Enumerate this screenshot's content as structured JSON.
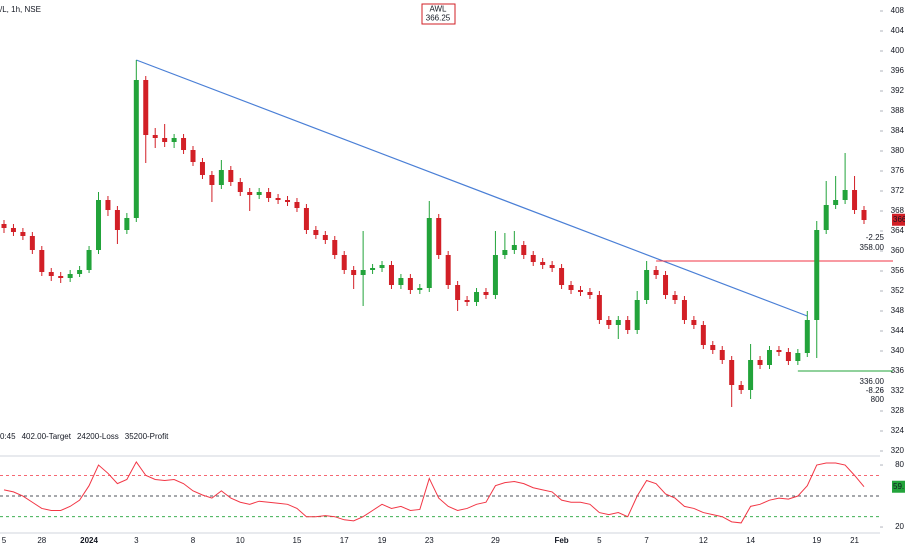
{
  "chart_data": {
    "type": "candlestick",
    "title": "/L, 1h, NSE",
    "symbol": "AWL",
    "last_price": 366.25,
    "last_price_tag": "366",
    "status": [
      {
        "text": "0:45",
        "color": "#787b86"
      },
      {
        "text": "402.00-Target",
        "color": "#2962ff"
      },
      {
        "text": "24200-Loss",
        "color": "#f23645"
      },
      {
        "text": "35200-Profit",
        "color": "#089981"
      }
    ],
    "up_color": "#22a33a",
    "down_color": "#d21f26",
    "ylim": [
      319.2,
      410.2
    ],
    "yticks": [
      320,
      324,
      328,
      332,
      336,
      340,
      344,
      348,
      352,
      356,
      360,
      364,
      368,
      372,
      376,
      380,
      384,
      388,
      392,
      396,
      400,
      404,
      408
    ],
    "categories": [
      "5",
      null,
      null,
      null,
      "28",
      null,
      null,
      null,
      null,
      "2024",
      null,
      null,
      null,
      null,
      "3",
      null,
      null,
      null,
      null,
      null,
      "8",
      null,
      null,
      null,
      null,
      "10",
      null,
      null,
      null,
      null,
      null,
      "15",
      null,
      null,
      null,
      null,
      "17",
      null,
      null,
      null,
      "19",
      null,
      null,
      null,
      null,
      "23",
      null,
      null,
      null,
      null,
      null,
      null,
      "29",
      null,
      null,
      null,
      null,
      null,
      null,
      "Feb",
      null,
      null,
      null,
      "5",
      null,
      null,
      null,
      null,
      "7",
      null,
      null,
      null,
      null,
      null,
      "12",
      null,
      null,
      null,
      null,
      "14",
      null,
      null,
      null,
      null,
      null,
      null,
      "19",
      null,
      null,
      null,
      "21",
      null
    ],
    "ohlc": [
      [
        365.4,
        366.2,
        363.6,
        364.6
      ],
      [
        364.6,
        365.4,
        363,
        363.8
      ],
      [
        363.8,
        364.6,
        362.2,
        363
      ],
      [
        363,
        363.8,
        359.4,
        360.2
      ],
      [
        360.2,
        361,
        355,
        355.8
      ],
      [
        355.8,
        356.6,
        354,
        355
      ],
      [
        355,
        355.8,
        353.6,
        354.6
      ],
      [
        354.6,
        356.2,
        353.8,
        355.4
      ],
      [
        355.4,
        357,
        354.8,
        356.2
      ],
      [
        356.2,
        361,
        355.6,
        360.2
      ],
      [
        360.2,
        371.8,
        359.4,
        370.2
      ],
      [
        370.2,
        371,
        367,
        368.2
      ],
      [
        368.2,
        369,
        361.4,
        364.2
      ],
      [
        364.2,
        367.6,
        363.4,
        366.6
      ],
      [
        366.6,
        398.2,
        365.8,
        394.2
      ],
      [
        394.2,
        395,
        377.6,
        383.2
      ],
      [
        383.2,
        384.6,
        380.6,
        382.6
      ],
      [
        382.6,
        385.4,
        380.8,
        381.8
      ],
      [
        381.8,
        383.4,
        380.6,
        382.6
      ],
      [
        382.6,
        383.4,
        379.4,
        380.2
      ],
      [
        380.2,
        381,
        377,
        377.8
      ],
      [
        377.8,
        378.6,
        374.4,
        375.2
      ],
      [
        375.2,
        376,
        369.8,
        373.2
      ],
      [
        373.2,
        378.2,
        372.4,
        376.2
      ],
      [
        376.2,
        377,
        373,
        373.8
      ],
      [
        373.8,
        374.6,
        371,
        371.8
      ],
      [
        371.8,
        372.6,
        368,
        371.2
      ],
      [
        371.2,
        372.6,
        370.4,
        371.8
      ],
      [
        371.8,
        372.6,
        369.8,
        370.6
      ],
      [
        370.6,
        371.4,
        369.4,
        370.2
      ],
      [
        370.2,
        371,
        369,
        369.8
      ],
      [
        369.8,
        370.6,
        367.8,
        368.6
      ],
      [
        368.6,
        369.4,
        363.4,
        364.2
      ],
      [
        364.2,
        365,
        362.4,
        363.2
      ],
      [
        363.2,
        364,
        361.4,
        362.2
      ],
      [
        362.2,
        363,
        358.4,
        359.2
      ],
      [
        359.2,
        360,
        355.4,
        356.2
      ],
      [
        356.2,
        357,
        352.4,
        355.2
      ],
      [
        355.2,
        364,
        349,
        356.2
      ],
      [
        356.2,
        357.4,
        355.4,
        356.6
      ],
      [
        356.6,
        358,
        355.8,
        357.2
      ],
      [
        357.2,
        358,
        352.4,
        353.2
      ],
      [
        353.2,
        355.4,
        352.4,
        354.6
      ],
      [
        354.6,
        355.4,
        351.4,
        352.2
      ],
      [
        352.2,
        353.4,
        351.4,
        352.6
      ],
      [
        352.6,
        370,
        351.8,
        366.6
      ],
      [
        366.6,
        367.4,
        358.4,
        359.2
      ],
      [
        359.2,
        360,
        352.4,
        353.2
      ],
      [
        353.2,
        354,
        348,
        350.2
      ],
      [
        350.2,
        351,
        349,
        349.8
      ],
      [
        349.8,
        352.6,
        349,
        351.8
      ],
      [
        351.8,
        352.6,
        350.4,
        351.2
      ],
      [
        351.2,
        364,
        350.4,
        359.2
      ],
      [
        359.2,
        363.6,
        358.4,
        360.2
      ],
      [
        360.2,
        364,
        359.4,
        361.2
      ],
      [
        361.2,
        362,
        358.4,
        359.2
      ],
      [
        359.2,
        360,
        357,
        357.8
      ],
      [
        357.8,
        358.6,
        356.4,
        357.2
      ],
      [
        357.2,
        358,
        355.8,
        356.6
      ],
      [
        356.6,
        357.4,
        352.4,
        353.2
      ],
      [
        353.2,
        354,
        351.4,
        352.2
      ],
      [
        352.2,
        353,
        351,
        351.8
      ],
      [
        351.8,
        352.6,
        350.4,
        351.2
      ],
      [
        351.2,
        352,
        345.4,
        346.2
      ],
      [
        346.2,
        347,
        344.4,
        345.2
      ],
      [
        345.2,
        347,
        342.4,
        346.2
      ],
      [
        346.2,
        347,
        343.4,
        344.2
      ],
      [
        344.2,
        352,
        343.4,
        350.2
      ],
      [
        350.2,
        358,
        349.4,
        356.2
      ],
      [
        356.2,
        357,
        354.4,
        355.2
      ],
      [
        355.2,
        356,
        350.4,
        351.2
      ],
      [
        351.2,
        352,
        349.4,
        350.2
      ],
      [
        350.2,
        351,
        345.4,
        346.2
      ],
      [
        346.2,
        347,
        344.4,
        345.2
      ],
      [
        345.2,
        346,
        340.4,
        341.2
      ],
      [
        341.2,
        342,
        339.4,
        340.2
      ],
      [
        340.2,
        341,
        337.4,
        338.2
      ],
      [
        338.2,
        339,
        328.8,
        333.2
      ],
      [
        333.2,
        334,
        331.4,
        332.2
      ],
      [
        332.2,
        341.4,
        330.4,
        338.2
      ],
      [
        338.2,
        339,
        336.4,
        337.2
      ],
      [
        337.2,
        341,
        336.4,
        340.2
      ],
      [
        340.2,
        341,
        339,
        339.8
      ],
      [
        339.8,
        340.6,
        337.2,
        338
      ],
      [
        338,
        340.4,
        337.2,
        339.6
      ],
      [
        339.6,
        348,
        338.8,
        346.2
      ],
      [
        346.2,
        366,
        338.6,
        364.2
      ],
      [
        364.2,
        374,
        363.4,
        369.2
      ],
      [
        369.2,
        375,
        368.4,
        370.2
      ],
      [
        370.2,
        379.6,
        369.4,
        372.2
      ],
      [
        372.2,
        375,
        367.4,
        368.2
      ],
      [
        368.2,
        369,
        365.4,
        366.2
      ]
    ],
    "trendline": {
      "color": "#4a7fd6",
      "values": [
        398.2,
        347
      ]
    },
    "levels": [
      {
        "value": 358,
        "label": "358.00",
        "change": -2.25,
        "color": "#f23645"
      },
      {
        "value": 336,
        "label": "336.00",
        "change": -8.26,
        "qty": 800,
        "color": "#22a33a"
      }
    ],
    "oscillator": {
      "color": "#f23645",
      "ylim": [
        15.2,
        86.8
      ],
      "yticks": [
        20,
        80
      ],
      "last_label": "59.",
      "levels": [
        {
          "value": 70,
          "color": "#f23645"
        },
        {
          "value": 50,
          "color": "#131722"
        },
        {
          "value": 30,
          "color": "#22a33a"
        }
      ],
      "values": [
        56,
        54,
        50,
        44,
        38,
        36,
        36,
        40,
        46,
        60,
        80,
        72,
        62,
        66,
        83,
        70,
        66,
        65,
        66,
        62,
        55,
        51,
        48,
        55,
        48,
        44,
        42,
        45,
        44,
        43,
        42,
        38,
        30,
        30,
        31,
        30,
        27,
        26,
        30,
        36,
        42,
        38,
        40,
        36,
        37,
        67,
        48,
        40,
        36,
        38,
        42,
        44,
        60,
        63,
        64,
        62,
        58,
        56,
        54,
        46,
        44,
        44,
        42,
        34,
        32,
        34,
        30,
        50,
        65,
        62,
        52,
        48,
        40,
        38,
        34,
        32,
        30,
        25,
        24,
        40,
        42,
        46,
        48,
        47,
        50,
        60,
        80,
        82,
        82,
        80,
        70,
        59
      ]
    }
  }
}
